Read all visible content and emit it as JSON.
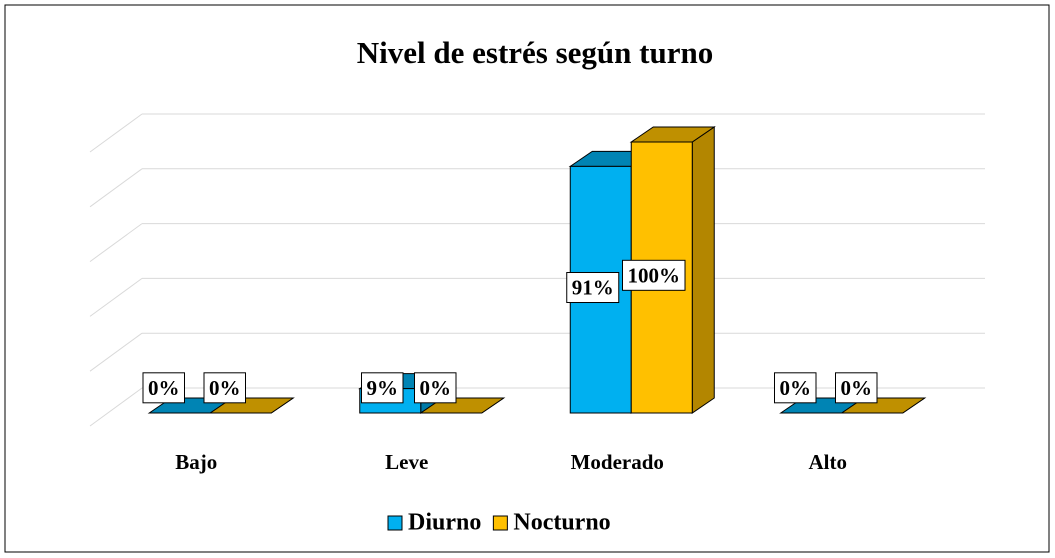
{
  "chart_data": {
    "type": "bar3d",
    "title": "Nivel de estrés según turno",
    "categories": [
      "Bajo",
      "Leve",
      "Moderado",
      "Alto"
    ],
    "series": [
      {
        "name": "Diurno",
        "color": "#00b0f0",
        "values": [
          0,
          9,
          91,
          0
        ],
        "value_labels": [
          "0%",
          "9%",
          "91%",
          "0%"
        ]
      },
      {
        "name": "Nocturno",
        "color": "#ffc000",
        "values": [
          0,
          0,
          100,
          0
        ],
        "value_labels": [
          "0%",
          "0%",
          "100%",
          "0%"
        ]
      }
    ],
    "ylim": [
      0,
      100
    ],
    "yticks": [
      0,
      20,
      40,
      60,
      80,
      100
    ],
    "grid": true,
    "legend": "bottom"
  }
}
